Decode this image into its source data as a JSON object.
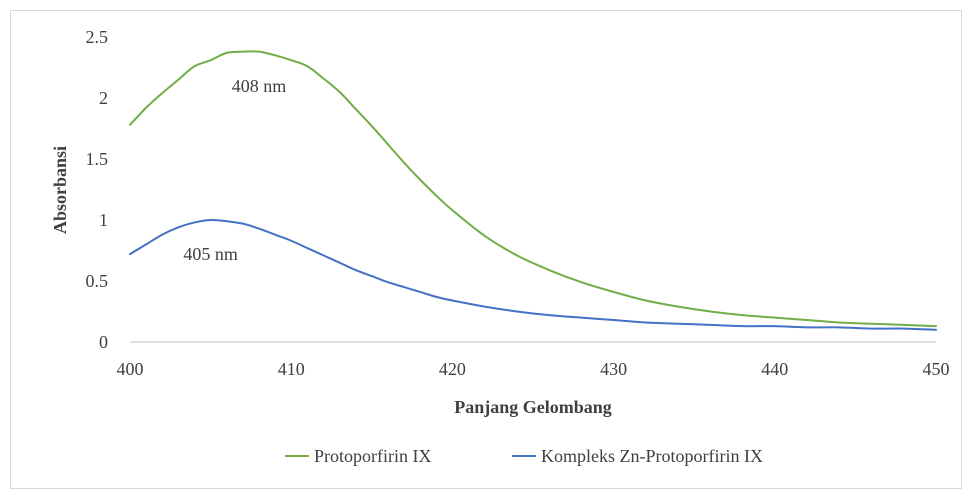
{
  "chart_data": {
    "type": "line",
    "xlabel": "Panjang Gelombang",
    "ylabel": "Absorbansi",
    "xlim": [
      400,
      450
    ],
    "ylim": [
      0,
      2.5
    ],
    "x_ticks": [
      "400",
      "410",
      "420",
      "430",
      "440",
      "450"
    ],
    "y_ticks": [
      "0",
      "0.5",
      "1",
      "1.5",
      "2",
      "2.5"
    ],
    "grid": false,
    "legend_position": "bottom",
    "series": [
      {
        "name": "Protoporfirin IX",
        "color": "#70AD47",
        "x": [
          400,
          401,
          402,
          403,
          404,
          405,
          406,
          407,
          408,
          409,
          410,
          411,
          412,
          413,
          414,
          415,
          416,
          417,
          418,
          419,
          420,
          422,
          424,
          426,
          428,
          430,
          432,
          434,
          436,
          438,
          440,
          442,
          444,
          446,
          448,
          450
        ],
        "y": [
          1.78,
          1.92,
          2.04,
          2.15,
          2.26,
          2.31,
          2.37,
          2.38,
          2.38,
          2.35,
          2.31,
          2.26,
          2.16,
          2.05,
          1.91,
          1.77,
          1.62,
          1.47,
          1.33,
          1.2,
          1.08,
          0.87,
          0.71,
          0.59,
          0.49,
          0.41,
          0.34,
          0.29,
          0.25,
          0.22,
          0.2,
          0.18,
          0.16,
          0.15,
          0.14,
          0.13
        ]
      },
      {
        "name": "Kompleks Zn-Protoporfirin IX",
        "color": "#4472C4",
        "x": [
          400,
          401,
          402,
          403,
          404,
          405,
          406,
          407,
          408,
          409,
          410,
          411,
          412,
          413,
          414,
          415,
          416,
          417,
          418,
          419,
          420,
          422,
          424,
          426,
          428,
          430,
          432,
          434,
          436,
          438,
          440,
          442,
          444,
          446,
          448,
          450
        ],
        "y": [
          0.72,
          0.8,
          0.88,
          0.94,
          0.98,
          1.0,
          0.99,
          0.97,
          0.93,
          0.88,
          0.83,
          0.77,
          0.71,
          0.65,
          0.59,
          0.54,
          0.49,
          0.45,
          0.41,
          0.37,
          0.34,
          0.29,
          0.25,
          0.22,
          0.2,
          0.18,
          0.16,
          0.15,
          0.14,
          0.13,
          0.13,
          0.12,
          0.12,
          0.11,
          0.11,
          0.1
        ]
      }
    ],
    "annotations": [
      {
        "text": "408 nm",
        "x": 408,
        "y": 2.1
      },
      {
        "text": "405 nm",
        "x": 405,
        "y": 0.72
      }
    ]
  }
}
